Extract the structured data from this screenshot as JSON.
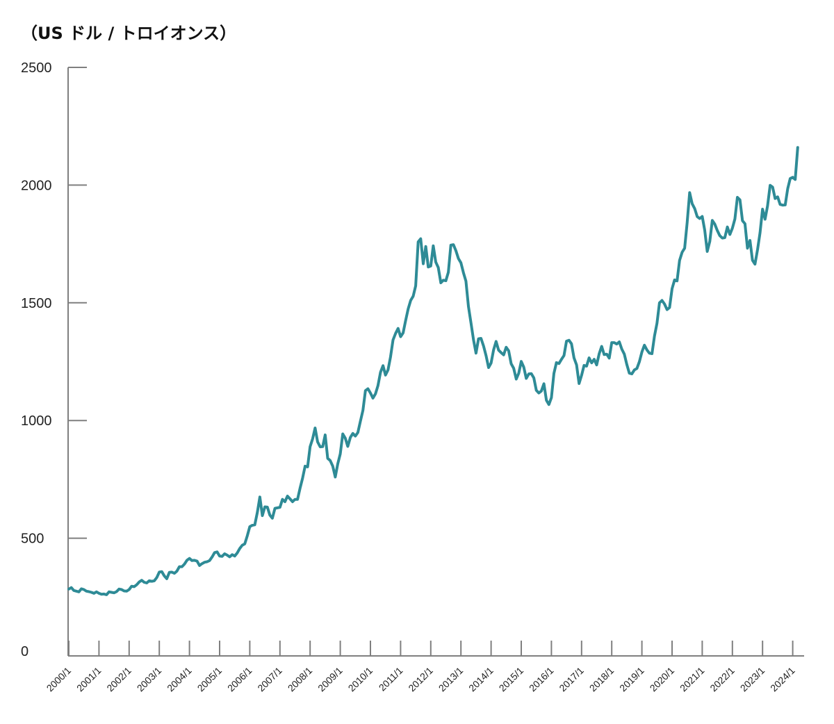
{
  "chart_data": {
    "type": "line",
    "title": "",
    "unit_label": "（US ドル / トロイオンス）",
    "xlabel": "",
    "ylabel": "",
    "ylim": [
      0,
      2500
    ],
    "y_ticks": [
      0,
      500,
      1000,
      1500,
      2000,
      2500
    ],
    "y_tick_labels": [
      "0",
      "500",
      "1000",
      "1500",
      "2000",
      "2500"
    ],
    "x_tick_labels": [
      "2000/1",
      "2001/1",
      "2002/1",
      "2003/1",
      "2004/1",
      "2005/1",
      "2006/1",
      "2007/1",
      "2008/1",
      "2009/1",
      "2010/1",
      "2011/1",
      "2012/1",
      "2013/1",
      "2014/1",
      "2015/1",
      "2016/1",
      "2017/1",
      "2018/1",
      "2019/1",
      "2020/1",
      "2021/1",
      "2022/1",
      "2023/1",
      "2024/1"
    ],
    "x_range": [
      "2000/1",
      "2024/3"
    ],
    "grid": false,
    "line_color": "#2e8b96",
    "series": [
      {
        "x": [
          "2000/1",
          "2000/2",
          "2000/3",
          "2000/4",
          "2000/5",
          "2000/6",
          "2000/7",
          "2000/8",
          "2000/9",
          "2000/10",
          "2000/11",
          "2000/12",
          "2001/1",
          "2001/2",
          "2001/3",
          "2001/4",
          "2001/5",
          "2001/6",
          "2001/7",
          "2001/8",
          "2001/9",
          "2001/10",
          "2001/11",
          "2001/12",
          "2002/1",
          "2002/2",
          "2002/3",
          "2002/4",
          "2002/5",
          "2002/6",
          "2002/7",
          "2002/8",
          "2002/9",
          "2002/10",
          "2002/11",
          "2002/12",
          "2003/1",
          "2003/2",
          "2003/3",
          "2003/4",
          "2003/5",
          "2003/6",
          "2003/7",
          "2003/8",
          "2003/9",
          "2003/10",
          "2003/11",
          "2003/12",
          "2004/1",
          "2004/2",
          "2004/3",
          "2004/4",
          "2004/5",
          "2004/6",
          "2004/7",
          "2004/8",
          "2004/9",
          "2004/10",
          "2004/11",
          "2004/12",
          "2005/1",
          "2005/2",
          "2005/3",
          "2005/4",
          "2005/5",
          "2005/6",
          "2005/7",
          "2005/8",
          "2005/9",
          "2005/10",
          "2005/11",
          "2005/12",
          "2006/1",
          "2006/2",
          "2006/3",
          "2006/4",
          "2006/5",
          "2006/6",
          "2006/7",
          "2006/8",
          "2006/9",
          "2006/10",
          "2006/11",
          "2006/12",
          "2007/1",
          "2007/2",
          "2007/3",
          "2007/4",
          "2007/5",
          "2007/6",
          "2007/7",
          "2007/8",
          "2007/9",
          "2007/10",
          "2007/11",
          "2007/12",
          "2008/1",
          "2008/2",
          "2008/3",
          "2008/4",
          "2008/5",
          "2008/6",
          "2008/7",
          "2008/8",
          "2008/9",
          "2008/10",
          "2008/11",
          "2008/12",
          "2009/1",
          "2009/2",
          "2009/3",
          "2009/4",
          "2009/5",
          "2009/6",
          "2009/7",
          "2009/8",
          "2009/9",
          "2009/10",
          "2009/11",
          "2009/12",
          "2010/1",
          "2010/2",
          "2010/3",
          "2010/4",
          "2010/5",
          "2010/6",
          "2010/7",
          "2010/8",
          "2010/9",
          "2010/10",
          "2010/11",
          "2010/12",
          "2011/1",
          "2011/2",
          "2011/3",
          "2011/4",
          "2011/5",
          "2011/6",
          "2011/7",
          "2011/8",
          "2011/9",
          "2011/10",
          "2011/11",
          "2011/12",
          "2012/1",
          "2012/2",
          "2012/3",
          "2012/4",
          "2012/5",
          "2012/6",
          "2012/7",
          "2012/8",
          "2012/9",
          "2012/10",
          "2012/11",
          "2012/12",
          "2013/1",
          "2013/2",
          "2013/3",
          "2013/4",
          "2013/5",
          "2013/6",
          "2013/7",
          "2013/8",
          "2013/9",
          "2013/10",
          "2013/11",
          "2013/12",
          "2014/1",
          "2014/2",
          "2014/3",
          "2014/4",
          "2014/5",
          "2014/6",
          "2014/7",
          "2014/8",
          "2014/9",
          "2014/10",
          "2014/11",
          "2014/12",
          "2015/1",
          "2015/2",
          "2015/3",
          "2015/4",
          "2015/5",
          "2015/6",
          "2015/7",
          "2015/8",
          "2015/9",
          "2015/10",
          "2015/11",
          "2015/12",
          "2016/1",
          "2016/2",
          "2016/3",
          "2016/4",
          "2016/5",
          "2016/6",
          "2016/7",
          "2016/8",
          "2016/9",
          "2016/10",
          "2016/11",
          "2016/12",
          "2017/1",
          "2017/2",
          "2017/3",
          "2017/4",
          "2017/5",
          "2017/6",
          "2017/7",
          "2017/8",
          "2017/9",
          "2017/10",
          "2017/11",
          "2017/12",
          "2018/1",
          "2018/2",
          "2018/3",
          "2018/4",
          "2018/5",
          "2018/6",
          "2018/7",
          "2018/8",
          "2018/9",
          "2018/10",
          "2018/11",
          "2018/12",
          "2019/1",
          "2019/2",
          "2019/3",
          "2019/4",
          "2019/5",
          "2019/6",
          "2019/7",
          "2019/8",
          "2019/9",
          "2019/10",
          "2019/11",
          "2019/12",
          "2020/1",
          "2020/2",
          "2020/3",
          "2020/4",
          "2020/5",
          "2020/6",
          "2020/7",
          "2020/8",
          "2020/9",
          "2020/10",
          "2020/11",
          "2020/12",
          "2021/1",
          "2021/2",
          "2021/3",
          "2021/4",
          "2021/5",
          "2021/6",
          "2021/7",
          "2021/8",
          "2021/9",
          "2021/10",
          "2021/11",
          "2021/12",
          "2022/1",
          "2022/2",
          "2022/3",
          "2022/4",
          "2022/5",
          "2022/6",
          "2022/7",
          "2022/8",
          "2022/9",
          "2022/10",
          "2022/11",
          "2022/12",
          "2023/1",
          "2023/2",
          "2023/3",
          "2023/4",
          "2023/5",
          "2023/6",
          "2023/7",
          "2023/8",
          "2023/9",
          "2023/10",
          "2023/11",
          "2023/12",
          "2024/1",
          "2024/2",
          "2024/3"
        ],
        "values": [
          284,
          290,
          278,
          275,
          272,
          285,
          282,
          275,
          273,
          270,
          266,
          272,
          266,
          262,
          263,
          260,
          272,
          270,
          268,
          273,
          284,
          282,
          276,
          275,
          282,
          296,
          294,
          302,
          314,
          321,
          313,
          310,
          319,
          317,
          319,
          333,
          356,
          358,
          340,
          328,
          355,
          356,
          351,
          360,
          379,
          379,
          390,
          406,
          414,
          405,
          406,
          403,
          384,
          392,
          398,
          400,
          405,
          420,
          439,
          442,
          424,
          423,
          434,
          428,
          421,
          430,
          424,
          437,
          456,
          470,
          476,
          510,
          549,
          555,
          557,
          610,
          675,
          596,
          633,
          632,
          598,
          585,
          627,
          629,
          631,
          665,
          655,
          679,
          667,
          655,
          665,
          665,
          712,
          754,
          806,
          803,
          889,
          922,
          968,
          909,
          888,
          889,
          939,
          839,
          830,
          806,
          760,
          816,
          858,
          943,
          925,
          890,
          928,
          945,
          934,
          949,
          996,
          1043,
          1127,
          1135,
          1117,
          1095,
          1113,
          1148,
          1205,
          1233,
          1193,
          1215,
          1270,
          1342,
          1370,
          1391,
          1356,
          1372,
          1424,
          1474,
          1510,
          1528,
          1572,
          1759,
          1772,
          1666,
          1739,
          1652,
          1656,
          1742,
          1673,
          1650,
          1585,
          1596,
          1594,
          1630,
          1745,
          1747,
          1721,
          1688,
          1670,
          1628,
          1592,
          1485,
          1414,
          1343,
          1286,
          1347,
          1349,
          1316,
          1275,
          1225,
          1244,
          1300,
          1336,
          1299,
          1288,
          1279,
          1311,
          1296,
          1241,
          1222,
          1176,
          1201,
          1251,
          1227,
          1179,
          1198,
          1199,
          1181,
          1128,
          1117,
          1125,
          1156,
          1086,
          1068,
          1097,
          1200,
          1246,
          1242,
          1260,
          1276,
          1337,
          1341,
          1326,
          1266,
          1236,
          1157,
          1192,
          1234,
          1231,
          1266,
          1245,
          1260,
          1236,
          1283,
          1315,
          1280,
          1282,
          1265,
          1331,
          1331,
          1325,
          1334,
          1303,
          1282,
          1238,
          1201,
          1198,
          1215,
          1221,
          1250,
          1291,
          1320,
          1300,
          1286,
          1284,
          1359,
          1413,
          1500,
          1510,
          1495,
          1471,
          1480,
          1560,
          1597,
          1593,
          1680,
          1715,
          1732,
          1840,
          1968,
          1921,
          1900,
          1866,
          1858,
          1867,
          1808,
          1718,
          1761,
          1850,
          1834,
          1807,
          1785,
          1775,
          1777,
          1822,
          1790,
          1817,
          1856,
          1948,
          1937,
          1849,
          1836,
          1732,
          1765,
          1681,
          1664,
          1726,
          1798,
          1898,
          1855,
          1912,
          1999,
          1991,
          1943,
          1950,
          1918,
          1915,
          1916,
          1985,
          2028,
          2033,
          2024,
          2160
        ]
      }
    ]
  }
}
